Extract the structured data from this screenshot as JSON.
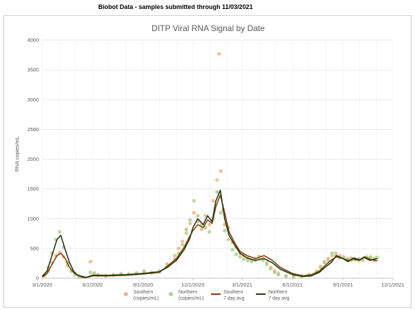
{
  "header": {
    "text": "Biobot Data - samples submitted through 11/03/2021"
  },
  "chart_data": {
    "type": "scatter",
    "title": "DITP Viral RNA Signal by Date",
    "xlabel": "",
    "ylabel": "RNA copies/mL",
    "ylim": [
      0,
      4000
    ],
    "yticks": [
      0,
      500,
      1000,
      1500,
      2000,
      2500,
      3000,
      3500,
      4000
    ],
    "xlim": [
      "2020-03-01",
      "2021-12-01"
    ],
    "xticks": [
      "2020-03-01",
      "2020-06-01",
      "2020-09-01",
      "2020-12-01",
      "2021-03-01",
      "2021-06-01",
      "2021-09-01",
      "2021-12-01"
    ],
    "xtick_labels": [
      "3/1/2020",
      "6/1/2020",
      "9/1/2020",
      "12/1/2020",
      "3/1/2021",
      "6/1/2021",
      "9/1/2021",
      "12/1/2021"
    ],
    "grid": true,
    "legend_position": "bottom",
    "legend": [
      {
        "line1": "Southern",
        "line2": "(copies/mL)",
        "kind": "marker",
        "color": "#f4b183"
      },
      {
        "line1": "Northern",
        "line2": "(copies/mL)",
        "kind": "marker",
        "color": "#a9d18e"
      },
      {
        "line1": "Southern",
        "line2": "7 day avg",
        "kind": "line",
        "color": "#843c0c"
      },
      {
        "line1": "Northern",
        "line2": "7 day avg",
        "kind": "line",
        "color": "#1f3a0e"
      }
    ],
    "series": [
      {
        "name": "Southern (copies/mL)",
        "kind": "scatter",
        "color": "#f4b183",
        "x": [
          "2020-03-05",
          "2020-03-12",
          "2020-03-19",
          "2020-03-26",
          "2020-04-02",
          "2020-04-09",
          "2020-04-16",
          "2020-04-23",
          "2020-04-30",
          "2020-05-07",
          "2020-05-14",
          "2020-05-28",
          "2020-06-04",
          "2020-06-11",
          "2020-06-25",
          "2020-07-09",
          "2020-07-23",
          "2020-08-06",
          "2020-08-20",
          "2020-09-03",
          "2020-09-17",
          "2020-10-01",
          "2020-10-15",
          "2020-10-29",
          "2020-11-05",
          "2020-11-12",
          "2020-11-19",
          "2020-11-26",
          "2020-12-03",
          "2020-12-10",
          "2020-12-17",
          "2020-12-24",
          "2020-12-31",
          "2021-01-07",
          "2021-01-14",
          "2021-01-18",
          "2021-01-21",
          "2021-01-25",
          "2021-01-28",
          "2021-02-04",
          "2021-02-11",
          "2021-02-18",
          "2021-02-25",
          "2021-03-04",
          "2021-03-11",
          "2021-03-18",
          "2021-03-25",
          "2021-04-01",
          "2021-04-08",
          "2021-04-15",
          "2021-04-22",
          "2021-04-29",
          "2021-05-06",
          "2021-05-20",
          "2021-06-03",
          "2021-06-17",
          "2021-07-01",
          "2021-07-15",
          "2021-07-22",
          "2021-07-29",
          "2021-08-05",
          "2021-08-12",
          "2021-08-19",
          "2021-08-26",
          "2021-09-02",
          "2021-09-09",
          "2021-09-16",
          "2021-09-23",
          "2021-09-30",
          "2021-10-07",
          "2021-10-14",
          "2021-10-21",
          "2021-10-28",
          "2021-11-02"
        ],
        "values": [
          40,
          120,
          260,
          380,
          430,
          360,
          210,
          120,
          60,
          30,
          20,
          280,
          90,
          60,
          40,
          50,
          60,
          70,
          80,
          110,
          100,
          120,
          240,
          380,
          500,
          620,
          760,
          920,
          1100,
          950,
          820,
          1050,
          900,
          1300,
          1650,
          3770,
          1800,
          1150,
          900,
          850,
          600,
          520,
          420,
          380,
          340,
          300,
          320,
          370,
          330,
          260,
          180,
          120,
          80,
          40,
          30,
          40,
          60,
          120,
          200,
          280,
          330,
          380,
          420,
          380,
          350,
          330,
          340,
          320,
          300,
          330,
          360,
          340,
          300,
          320
        ]
      },
      {
        "name": "Northern (copies/mL)",
        "kind": "scatter",
        "color": "#a9d18e",
        "x": [
          "2020-03-05",
          "2020-03-12",
          "2020-03-19",
          "2020-03-26",
          "2020-04-02",
          "2020-04-09",
          "2020-04-16",
          "2020-04-23",
          "2020-04-30",
          "2020-05-07",
          "2020-05-14",
          "2020-05-28",
          "2020-06-04",
          "2020-06-11",
          "2020-06-25",
          "2020-07-09",
          "2020-07-23",
          "2020-08-06",
          "2020-08-20",
          "2020-09-03",
          "2020-09-17",
          "2020-10-01",
          "2020-10-15",
          "2020-10-29",
          "2020-11-05",
          "2020-11-12",
          "2020-11-19",
          "2020-11-26",
          "2020-12-03",
          "2020-12-10",
          "2020-12-17",
          "2020-12-24",
          "2020-12-31",
          "2021-01-07",
          "2021-01-14",
          "2021-01-21",
          "2021-01-28",
          "2021-02-04",
          "2021-02-11",
          "2021-02-18",
          "2021-02-25",
          "2021-03-04",
          "2021-03-11",
          "2021-03-18",
          "2021-03-25",
          "2021-04-01",
          "2021-04-08",
          "2021-04-15",
          "2021-04-22",
          "2021-04-29",
          "2021-05-06",
          "2021-05-20",
          "2021-06-03",
          "2021-06-17",
          "2021-07-01",
          "2021-07-15",
          "2021-07-22",
          "2021-07-29",
          "2021-08-05",
          "2021-08-12",
          "2021-08-19",
          "2021-08-26",
          "2021-09-02",
          "2021-09-09",
          "2021-09-16",
          "2021-09-23",
          "2021-09-30",
          "2021-10-07",
          "2021-10-14",
          "2021-10-21",
          "2021-10-28",
          "2021-11-02"
        ],
        "values": [
          50,
          180,
          420,
          650,
          780,
          520,
          260,
          120,
          60,
          40,
          20,
          100,
          70,
          50,
          40,
          60,
          80,
          70,
          90,
          120,
          90,
          110,
          200,
          320,
          420,
          560,
          820,
          980,
          1300,
          1050,
          900,
          850,
          780,
          1000,
          1450,
          1100,
          800,
          650,
          480,
          400,
          360,
          320,
          300,
          280,
          300,
          350,
          300,
          230,
          160,
          100,
          60,
          30,
          20,
          30,
          50,
          100,
          180,
          260,
          300,
          420,
          380,
          340,
          360,
          320,
          300,
          310,
          330,
          300,
          340,
          360,
          330,
          350
        ]
      },
      {
        "name": "Southern 7 day avg",
        "kind": "line",
        "color": "#843c0c",
        "x": [
          "2020-03-01",
          "2020-03-10",
          "2020-03-20",
          "2020-03-28",
          "2020-04-04",
          "2020-04-12",
          "2020-04-20",
          "2020-04-28",
          "2020-05-05",
          "2020-05-12",
          "2020-05-20",
          "2020-06-01",
          "2020-07-01",
          "2020-08-01",
          "2020-09-01",
          "2020-10-01",
          "2020-10-15",
          "2020-11-01",
          "2020-11-15",
          "2020-11-25",
          "2020-12-01",
          "2020-12-10",
          "2020-12-20",
          "2020-12-28",
          "2021-01-05",
          "2021-01-12",
          "2021-01-20",
          "2021-01-28",
          "2021-02-05",
          "2021-02-15",
          "2021-02-25",
          "2021-03-10",
          "2021-03-25",
          "2021-04-10",
          "2021-04-25",
          "2021-05-10",
          "2021-06-01",
          "2021-06-20",
          "2021-07-05",
          "2021-07-20",
          "2021-08-01",
          "2021-08-10",
          "2021-08-20",
          "2021-09-01",
          "2021-09-10",
          "2021-09-20",
          "2021-10-01",
          "2021-10-10",
          "2021-10-20",
          "2021-11-02"
        ],
        "values": [
          20,
          80,
          250,
          380,
          420,
          330,
          180,
          90,
          50,
          20,
          10,
          40,
          40,
          50,
          70,
          100,
          200,
          330,
          520,
          700,
          800,
          900,
          850,
          980,
          920,
          1200,
          1400,
          1100,
          780,
          600,
          450,
          380,
          330,
          380,
          300,
          180,
          80,
          40,
          60,
          120,
          230,
          300,
          360,
          330,
          300,
          320,
          300,
          360,
          320,
          290
        ]
      },
      {
        "name": "Northern 7 day avg",
        "kind": "line",
        "color": "#1f3a0e",
        "x": [
          "2020-03-01",
          "2020-03-10",
          "2020-03-20",
          "2020-03-28",
          "2020-04-04",
          "2020-04-12",
          "2020-04-20",
          "2020-04-28",
          "2020-05-05",
          "2020-05-12",
          "2020-05-20",
          "2020-06-01",
          "2020-07-01",
          "2020-08-01",
          "2020-09-01",
          "2020-10-01",
          "2020-10-15",
          "2020-11-01",
          "2020-11-15",
          "2020-11-25",
          "2020-12-01",
          "2020-12-10",
          "2020-12-20",
          "2020-12-28",
          "2021-01-05",
          "2021-01-12",
          "2021-01-20",
          "2021-01-28",
          "2021-02-05",
          "2021-02-15",
          "2021-02-25",
          "2021-03-10",
          "2021-03-25",
          "2021-04-10",
          "2021-04-25",
          "2021-05-10",
          "2021-06-01",
          "2021-06-20",
          "2021-07-05",
          "2021-07-20",
          "2021-08-01",
          "2021-08-10",
          "2021-08-20",
          "2021-09-01",
          "2021-09-10",
          "2021-09-20",
          "2021-10-01",
          "2021-10-10",
          "2021-10-20",
          "2021-11-02"
        ],
        "values": [
          30,
          120,
          420,
          650,
          720,
          480,
          260,
          110,
          50,
          30,
          15,
          50,
          50,
          60,
          80,
          110,
          180,
          300,
          480,
          660,
          850,
          1000,
          900,
          1050,
          950,
          1300,
          1480,
          1000,
          720,
          560,
          420,
          340,
          300,
          330,
          260,
          150,
          60,
          30,
          40,
          100,
          200,
          260,
          380,
          330,
          280,
          340,
          310,
          350,
          300,
          330
        ]
      }
    ]
  }
}
